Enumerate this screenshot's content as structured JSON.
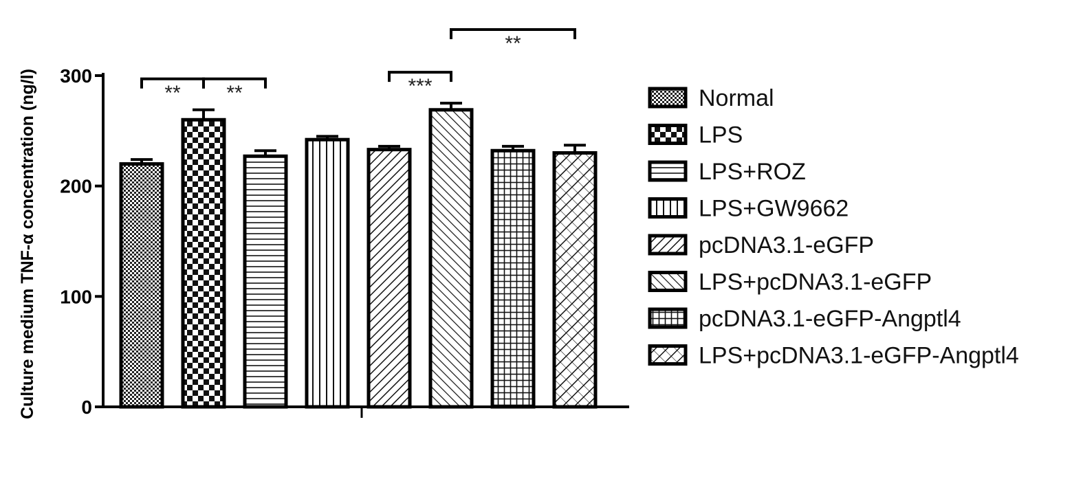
{
  "chart_data": {
    "type": "bar",
    "ylabel": "Culture medium TNF-α concentration (ng/l)",
    "xlabel": "",
    "ylim": [
      0,
      300
    ],
    "yticks": [
      0,
      100,
      200,
      300
    ],
    "grid": false,
    "legend_position": "right",
    "categories": [
      "Normal",
      "LPS",
      "LPS+ROZ",
      "LPS+GW9662",
      "pcDNA3.1-eGFP",
      "LPS+pcDNA3.1-eGFP",
      "pcDNA3.1-eGFP-Angptl4",
      "LPS+pcDNA3.1-eGFP-Angptl4"
    ],
    "values": [
      220,
      260,
      227,
      242,
      233,
      269,
      232,
      230
    ],
    "errors": [
      4,
      9,
      5,
      3,
      3,
      6,
      4,
      7
    ],
    "patterns": [
      "dots",
      "checker",
      "hlines",
      "vlines",
      "diag-up",
      "diag-down",
      "grid",
      "crosshatch"
    ],
    "significance": [
      {
        "from": 0,
        "to": 1,
        "label": "**"
      },
      {
        "from": 1,
        "to": 2,
        "label": "**"
      },
      {
        "from": 4,
        "to": 5,
        "label": "***"
      },
      {
        "from": 5,
        "to": 7,
        "label": "**"
      }
    ]
  }
}
